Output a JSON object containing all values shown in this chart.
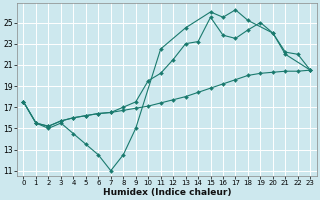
{
  "xlabel": "Humidex (Indice chaleur)",
  "xlim": [
    -0.5,
    23.5
  ],
  "ylim": [
    10.5,
    26.8
  ],
  "xticks": [
    0,
    1,
    2,
    3,
    4,
    5,
    6,
    7,
    8,
    9,
    10,
    11,
    12,
    13,
    14,
    15,
    16,
    17,
    18,
    19,
    20,
    21,
    22,
    23
  ],
  "yticks": [
    11,
    13,
    15,
    17,
    19,
    21,
    23,
    25
  ],
  "bg_color": "#cde8ee",
  "grid_color": "#b0d8e0",
  "line_color": "#1a7a6e",
  "line1_x": [
    0,
    1,
    2,
    3,
    4,
    5,
    6,
    7,
    8,
    9,
    11,
    13,
    15,
    16,
    17,
    18,
    20,
    21,
    23
  ],
  "line1_y": [
    17.5,
    15.5,
    15.0,
    15.5,
    14.5,
    13.5,
    12.5,
    11.0,
    12.5,
    15.0,
    22.5,
    24.5,
    26.0,
    25.5,
    26.2,
    25.2,
    24.0,
    22.0,
    20.5
  ],
  "line2_x": [
    0,
    1,
    2,
    3,
    4,
    5,
    6,
    7,
    8,
    9,
    10,
    11,
    12,
    13,
    14,
    15,
    16,
    17,
    18,
    19,
    20,
    21,
    22,
    23
  ],
  "line2_y": [
    17.5,
    15.5,
    15.2,
    15.7,
    16.0,
    16.2,
    16.4,
    16.5,
    16.7,
    16.9,
    17.1,
    17.4,
    17.7,
    18.0,
    18.4,
    18.8,
    19.2,
    19.6,
    20.0,
    20.2,
    20.3,
    20.4,
    20.4,
    20.5
  ],
  "line3_x": [
    0,
    1,
    2,
    3,
    4,
    5,
    6,
    7,
    8,
    9,
    10,
    11,
    12,
    13,
    14,
    15,
    16,
    17,
    18,
    19,
    20,
    21,
    22,
    23
  ],
  "line3_y": [
    17.5,
    15.5,
    15.2,
    15.7,
    16.0,
    16.2,
    16.4,
    16.5,
    17.0,
    17.5,
    19.5,
    20.2,
    21.5,
    23.0,
    23.2,
    25.5,
    23.8,
    23.5,
    24.3,
    25.0,
    24.0,
    22.2,
    22.0,
    20.5
  ],
  "figsize": [
    3.2,
    2.0
  ],
  "dpi": 100,
  "xtick_fontsize": 5.0,
  "ytick_fontsize": 5.5,
  "xlabel_fontsize": 6.5,
  "marker_size": 2.0,
  "linewidth": 0.8
}
